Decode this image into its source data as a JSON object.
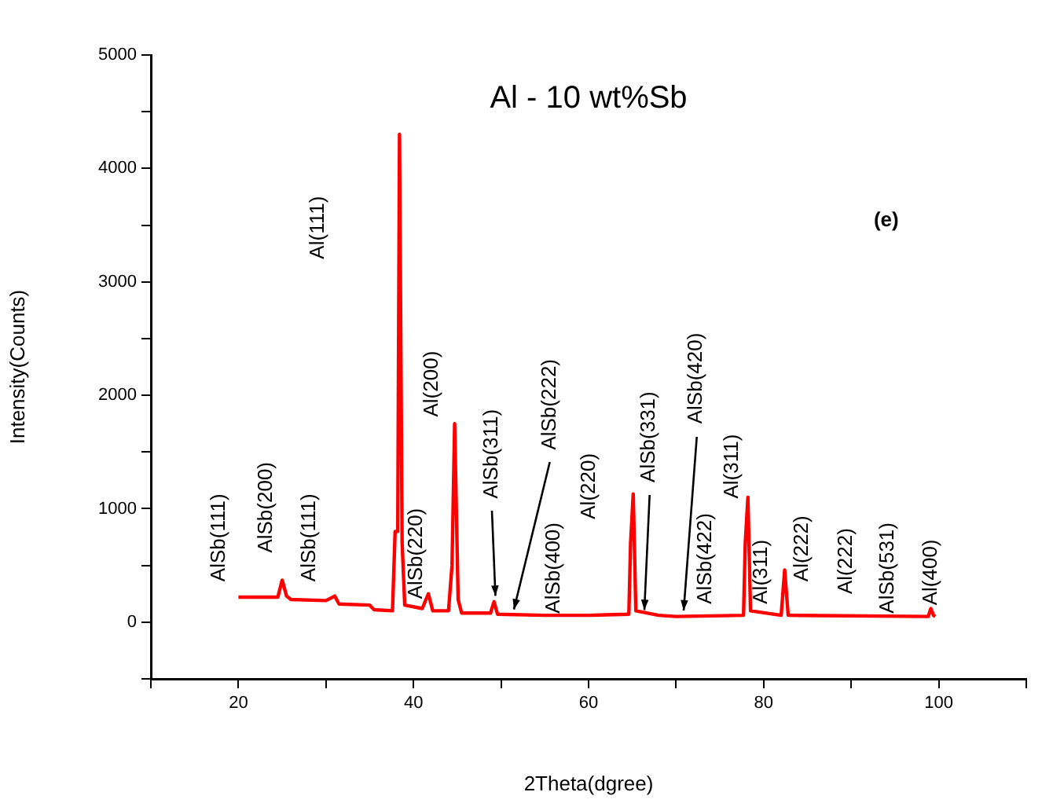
{
  "chart_data": {
    "type": "line",
    "title": "Al - 10 wt%Sb",
    "xlabel": "2Theta(dgree)",
    "ylabel": "Intensity(Counts)",
    "xlim": [
      10,
      110
    ],
    "xticks": [
      {
        "value": 10,
        "label": null
      },
      20,
      {
        "value": 30,
        "label": null
      },
      40,
      {
        "value": 50,
        "label": null
      },
      60,
      {
        "value": 70,
        "label": null
      },
      80,
      {
        "value": 90,
        "label": null
      },
      100,
      {
        "value": 110,
        "label": null
      }
    ],
    "ylim": [
      -500,
      5000
    ],
    "yticks": [
      {
        "value": -500,
        "label": null
      },
      0,
      {
        "value": 500,
        "label": null
      },
      1000,
      {
        "value": 1500,
        "label": null
      },
      2000,
      {
        "value": 2500,
        "label": null
      },
      3000,
      {
        "value": 3500,
        "label": null
      },
      4000,
      {
        "value": 4500,
        "label": null
      },
      5000
    ],
    "grid": false,
    "legend": false,
    "marker": "none",
    "line_style": "solid",
    "x": [
      20,
      24.5,
      25,
      25.5,
      26,
      30,
      31,
      31.5,
      35,
      35.5,
      37.6,
      37.9,
      38.2,
      38.4,
      38.7,
      39,
      41,
      41.7,
      42.2,
      44,
      44.4,
      44.7,
      45.1,
      45.5,
      48.8,
      49.2,
      49.6,
      55,
      60,
      64.6,
      64.8,
      65.1,
      65.4,
      68,
      70,
      77.7,
      77.9,
      78.2,
      78.5,
      82,
      82.4,
      82.8,
      98.8,
      99.1,
      99.4,
      99.6
    ],
    "series": [
      {
        "color": "#ff0000",
        "values": [
          220,
          220,
          370,
          230,
          200,
          190,
          230,
          160,
          150,
          110,
          100,
          800,
          800,
          4300,
          700,
          150,
          120,
          250,
          100,
          100,
          500,
          1750,
          200,
          80,
          80,
          180,
          70,
          60,
          60,
          70,
          700,
          1130,
          100,
          60,
          50,
          60,
          700,
          1100,
          100,
          60,
          460,
          60,
          50,
          120,
          60,
          50
        ]
      }
    ],
    "annotations": [
      "(e)",
      "AlSb(111)",
      "AlSb(200)",
      "AlSb(111)",
      "Al(111)",
      "AlSb(220)",
      "Al(200)",
      {
        "text": "AlSb(311)",
        "x": 49.3,
        "y": 200
      },
      {
        "text": "AlSb(222)",
        "x": 51.5,
        "y": 80
      },
      "AlSb(400)",
      "Al(220)",
      {
        "text": "AlSb(331)",
        "x": 66.3,
        "y": 80
      },
      {
        "text": "AlSb(420)",
        "x": 70.8,
        "y": 80
      },
      "AlSb(422)",
      "Al(311)",
      "Al(311)",
      "Al(222)",
      "Al(222)",
      "AlSb(531)",
      "Al(400)"
    ]
  }
}
